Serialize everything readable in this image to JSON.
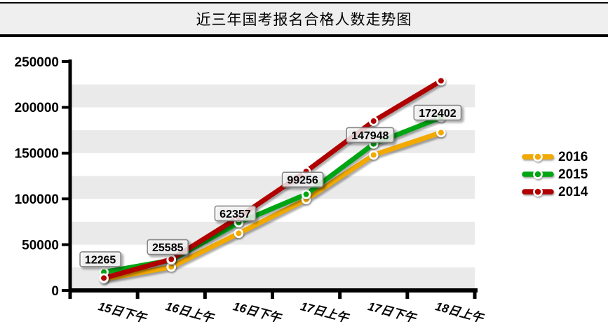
{
  "title": "近三年国考报名合格人数走势图",
  "chart_data": {
    "type": "line",
    "title": "近三年国考报名合格人数走势图",
    "categories": [
      "15日下午",
      "16日上午",
      "16日下午",
      "17日上午",
      "17日下午",
      "18日上午"
    ],
    "series": [
      {
        "name": "2016",
        "color": "#F2A900",
        "labeled": true,
        "values": [
          12265,
          25585,
          62357,
          99256,
          147948,
          172402
        ]
      },
      {
        "name": "2015",
        "color": "#00A513",
        "labeled": false,
        "values": [
          20000,
          33000,
          74000,
          105000,
          160000,
          189000
        ]
      },
      {
        "name": "2014",
        "color": "#B00000",
        "labeled": false,
        "values": [
          13500,
          34000,
          80000,
          130000,
          185000,
          229000
        ]
      }
    ],
    "ylim": [
      0,
      250000
    ],
    "ytick_step": 50000,
    "yticks": [
      "0",
      "50000",
      "100000",
      "150000",
      "200000",
      "250000"
    ],
    "band_step": 25000,
    "grid": "alternating-horizontal-bands",
    "legend_position": "right",
    "marker": "circle",
    "data_labels_series": "2016",
    "data_labels": [
      "12265",
      "25585",
      "62357",
      "99256",
      "147948",
      "172402"
    ]
  },
  "colors": {
    "band": "#EAEAEA",
    "axis": "#000000",
    "title_bar_bg": "#EFEFEF",
    "label_box_border": "#878787"
  }
}
